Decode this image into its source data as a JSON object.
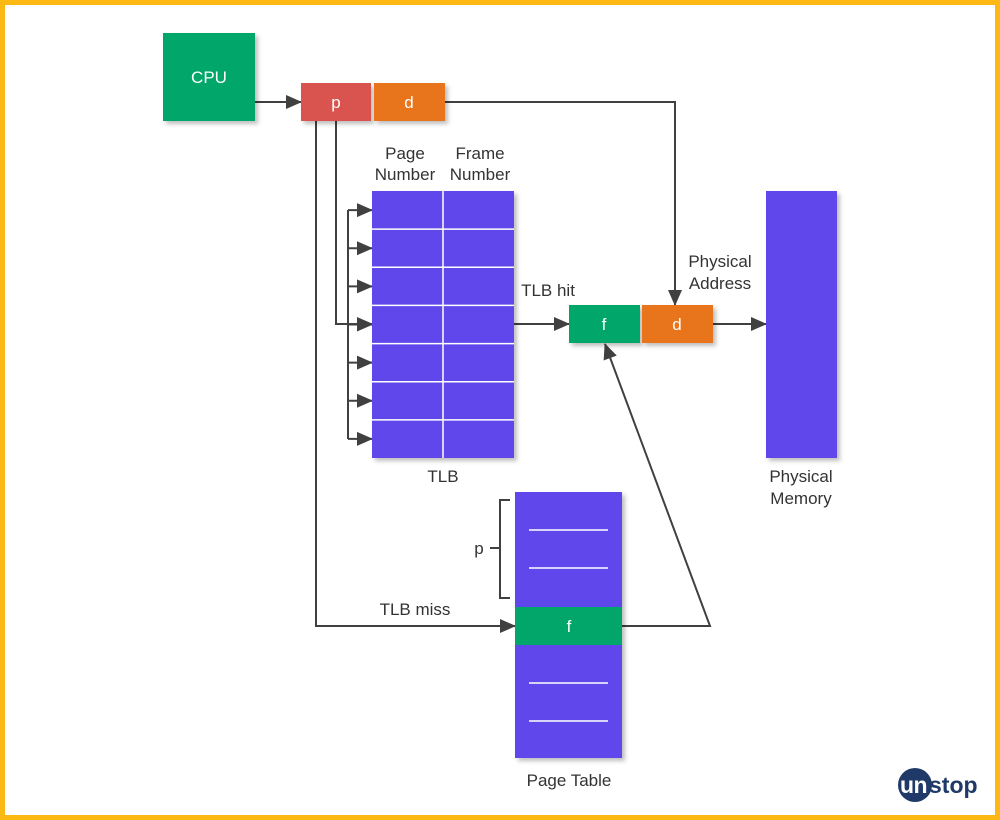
{
  "colors": {
    "border": "#FDB913",
    "green": "#03A66A",
    "red": "#D9534F",
    "orange": "#E8751A",
    "purple": "#6146EB",
    "line": "#404040",
    "logo": "#1F3A68"
  },
  "cpu": {
    "label": "CPU"
  },
  "logical_address": {
    "page": "p",
    "offset": "d"
  },
  "tlb": {
    "header_page": [
      "Page",
      "Number"
    ],
    "header_frame": [
      "Frame",
      "Number"
    ],
    "label": "TLB",
    "hit_label": "TLB hit",
    "miss_label": "TLB miss"
  },
  "physical_address": {
    "label": [
      "Physical",
      "Address"
    ],
    "frame": "f",
    "offset": "d"
  },
  "physical_memory": {
    "label": [
      "Physical",
      "Memory"
    ]
  },
  "page_table": {
    "label": "Page Table",
    "bracket_label": "p",
    "entry": "f"
  },
  "logo": {
    "text": "unstop"
  }
}
